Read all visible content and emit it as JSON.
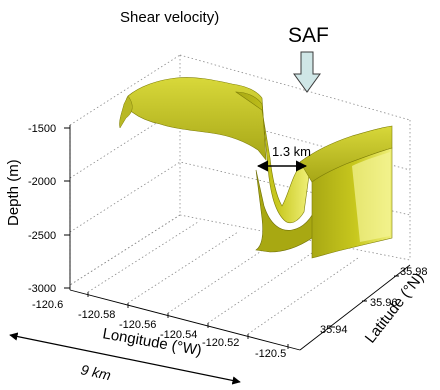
{
  "chart_data": {
    "type": "3d-surface",
    "title": "Shear velocity)",
    "xlabel": "Longitude (°W)",
    "ylabel": "Latitude (°N)",
    "zlabel": "Depth (m)",
    "x_ticks": [
      "-120.6",
      "-120.58",
      "-120.56",
      "-120.54",
      "-120.52",
      "-120.5"
    ],
    "y_ticks": [
      "35.94",
      "35.96",
      "35.98"
    ],
    "z_ticks": [
      "-1500",
      "-2000",
      "-2500",
      "-3000"
    ],
    "xlim": [
      -120.6,
      -120.5
    ],
    "ylim": [
      35.93,
      35.99
    ],
    "zlim": [
      -3000,
      -1000
    ],
    "grid": true,
    "surface_color": "#c8c81e",
    "annotations": [
      {
        "text": "SAF",
        "kind": "arrow-down",
        "color": "#cfe6e6"
      },
      {
        "text": "1.3 km",
        "kind": "double-arrow"
      },
      {
        "text": "9 km",
        "kind": "double-arrow"
      }
    ],
    "surface_profile": [
      {
        "lon": -120.585,
        "depth": -1280
      },
      {
        "lon": -120.575,
        "depth": -1350
      },
      {
        "lon": -120.565,
        "depth": -1320
      },
      {
        "lon": -120.555,
        "depth": -1380
      },
      {
        "lon": -120.548,
        "depth": -1500
      },
      {
        "lon": -120.545,
        "depth": -1850
      },
      {
        "lon": -120.542,
        "depth": -2300
      },
      {
        "lon": -120.538,
        "depth": -2450
      },
      {
        "lon": -120.533,
        "depth": -2150
      },
      {
        "lon": -120.528,
        "depth": -1750
      },
      {
        "lon": -120.52,
        "depth": -1580
      },
      {
        "lon": -120.51,
        "depth": -1560
      }
    ]
  }
}
